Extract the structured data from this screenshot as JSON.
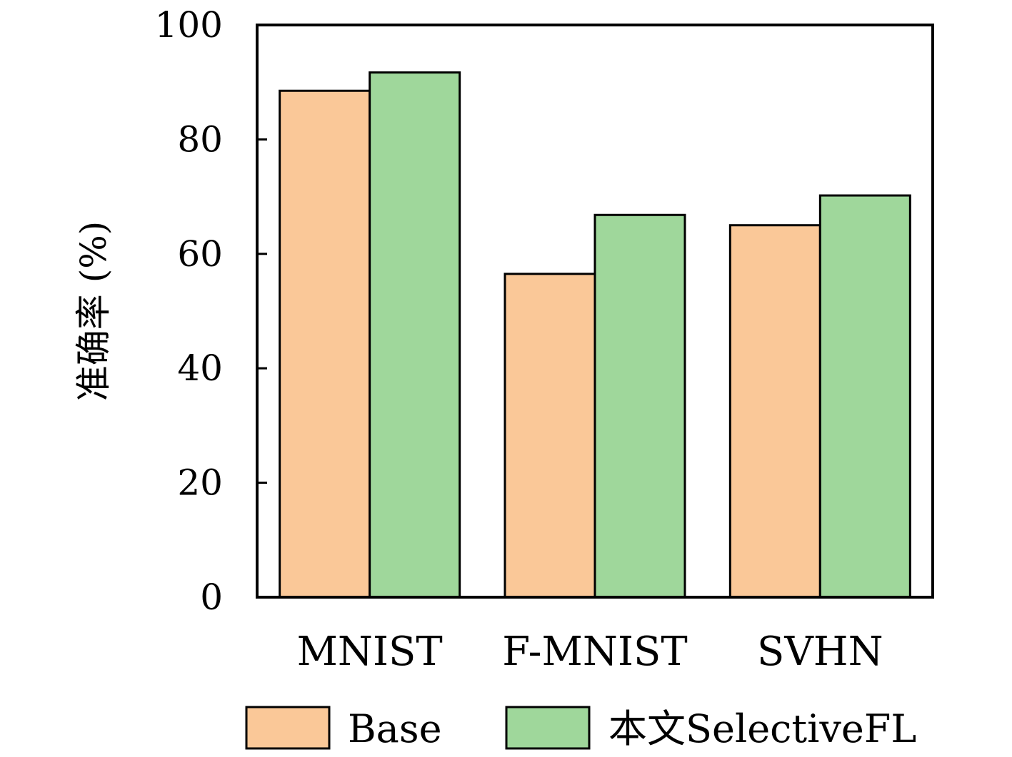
{
  "chart_data": {
    "type": "bar",
    "categories": [
      "MNIST",
      "F-MNIST",
      "SVHN"
    ],
    "series": [
      {
        "name": "Base",
        "values": [
          88.5,
          56.5,
          65
        ],
        "color": "#fac898"
      },
      {
        "name": "本文SelectiveFL",
        "values": [
          91.7,
          66.8,
          70.2
        ],
        "color": "#9fd79b"
      }
    ],
    "xlabel": "",
    "ylabel": "准确率 (%)",
    "ylim": [
      0,
      100
    ],
    "yticks": [
      0,
      20,
      40,
      60,
      80,
      100
    ],
    "grid": false,
    "legend_position": "bottom",
    "bar_edge_color": "#000000"
  }
}
